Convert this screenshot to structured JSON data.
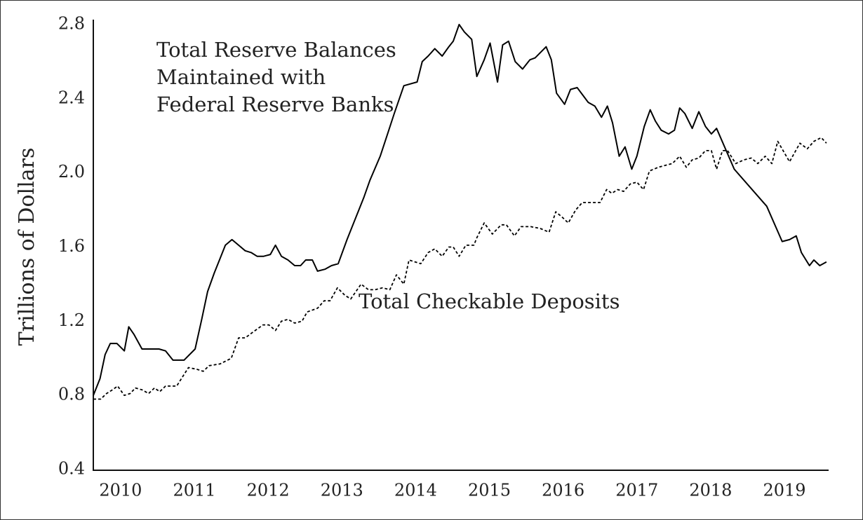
{
  "chart_data": {
    "type": "line",
    "ylabel": "Trillions of Dollars",
    "annotations": [
      {
        "lines": [
          "Total Reserve Balances",
          "Maintained with",
          "Federal Reserve Banks"
        ]
      },
      {
        "lines": [
          "Total Checkable Deposits"
        ]
      }
    ],
    "xlim": [
      2009.63,
      2019.59
    ],
    "xticks": [
      2010,
      2011,
      2012,
      2013,
      2014,
      2015,
      2016,
      2017,
      2018,
      2019
    ],
    "ylim": [
      0.4,
      2.8
    ],
    "yticks": [
      0.4,
      0.8,
      1.2,
      1.6,
      {
        "value": 2,
        "label": "2.0"
      },
      2.4,
      2.8
    ],
    "series": [
      {
        "color": "#000000",
        "dash": "solid",
        "x": [
          2009.63,
          2009.72,
          2009.79,
          2009.86,
          2009.95,
          2010.05,
          2010.11,
          2010.18,
          2010.29,
          2010.38,
          2010.52,
          2010.61,
          2010.71,
          2010.86,
          2011.01,
          2011.1,
          2011.18,
          2011.27,
          2011.34,
          2011.42,
          2011.51,
          2011.6,
          2011.69,
          2011.77,
          2011.85,
          2011.94,
          2012.03,
          2012.1,
          2012.18,
          2012.27,
          2012.36,
          2012.44,
          2012.51,
          2012.6,
          2012.67,
          2012.77,
          2012.86,
          2012.95,
          2013.07,
          2013.22,
          2013.3,
          2013.38,
          2013.52,
          2013.62,
          2013.71,
          2013.84,
          2014.02,
          2014.09,
          2014.17,
          2014.26,
          2014.36,
          2014.45,
          2014.51,
          2014.59,
          2014.66,
          2014.76,
          2014.83,
          2014.93,
          2015.01,
          2015.11,
          2015.18,
          2015.26,
          2015.35,
          2015.45,
          2015.55,
          2015.62,
          2015.77,
          2015.84,
          2015.91,
          2016.02,
          2016.1,
          2016.19,
          2016.34,
          2016.43,
          2016.52,
          2016.6,
          2016.67,
          2016.76,
          2016.84,
          2016.93,
          2017.0,
          2017.1,
          2017.18,
          2017.25,
          2017.33,
          2017.43,
          2017.51,
          2017.58,
          2017.65,
          2017.75,
          2017.84,
          2017.93,
          2018.01,
          2018.08,
          2018.32,
          2018.76,
          2018.97,
          2019.07,
          2019.16,
          2019.23,
          2019.34,
          2019.4,
          2019.48,
          2019.57
        ],
        "values": [
          0.8,
          0.89,
          1.02,
          1.08,
          1.08,
          1.04,
          1.17,
          1.13,
          1.05,
          1.05,
          1.05,
          1.04,
          0.99,
          0.99,
          1.05,
          1.21,
          1.36,
          1.46,
          1.53,
          1.61,
          1.64,
          1.61,
          1.58,
          1.57,
          1.55,
          1.55,
          1.56,
          1.61,
          1.55,
          1.53,
          1.5,
          1.5,
          1.53,
          1.53,
          1.47,
          1.48,
          1.5,
          1.51,
          1.64,
          1.79,
          1.87,
          1.96,
          2.09,
          2.21,
          2.32,
          2.47,
          2.49,
          2.6,
          2.63,
          2.67,
          2.63,
          2.68,
          2.71,
          2.8,
          2.76,
          2.72,
          2.52,
          2.61,
          2.7,
          2.49,
          2.69,
          2.71,
          2.6,
          2.56,
          2.61,
          2.62,
          2.68,
          2.61,
          2.43,
          2.37,
          2.45,
          2.46,
          2.38,
          2.36,
          2.3,
          2.36,
          2.27,
          2.09,
          2.14,
          2.02,
          2.09,
          2.25,
          2.34,
          2.28,
          2.23,
          2.21,
          2.23,
          2.35,
          2.32,
          2.24,
          2.33,
          2.25,
          2.21,
          2.24,
          2.02,
          1.82,
          1.63,
          1.64,
          1.66,
          1.57,
          1.5,
          1.53,
          1.5,
          1.52
        ]
      },
      {
        "color": "#000000",
        "dash": "dotted",
        "x": [
          2009.63,
          2009.73,
          2009.81,
          2009.89,
          2009.96,
          2010.05,
          2010.13,
          2010.2,
          2010.29,
          2010.38,
          2010.46,
          2010.53,
          2010.61,
          2010.76,
          2010.92,
          2011.04,
          2011.12,
          2011.2,
          2011.35,
          2011.5,
          2011.6,
          2011.69,
          2011.79,
          2011.93,
          2012.01,
          2012.1,
          2012.18,
          2012.27,
          2012.36,
          2012.46,
          2012.53,
          2012.67,
          2012.76,
          2012.84,
          2012.94,
          2013.04,
          2013.12,
          2013.26,
          2013.36,
          2013.45,
          2013.55,
          2013.65,
          2013.74,
          2013.84,
          2013.91,
          2014.07,
          2014.17,
          2014.26,
          2014.36,
          2014.45,
          2014.51,
          2014.59,
          2014.68,
          2014.79,
          2014.83,
          2014.93,
          2015.04,
          2015.16,
          2015.23,
          2015.34,
          2015.43,
          2015.56,
          2015.69,
          2015.81,
          2015.9,
          2015.99,
          2016.07,
          2016.17,
          2016.26,
          2016.36,
          2016.5,
          2016.59,
          2016.66,
          2016.74,
          2016.82,
          2016.91,
          2017.0,
          2017.09,
          2017.17,
          2017.29,
          2017.38,
          2017.48,
          2017.58,
          2017.67,
          2017.75,
          2017.84,
          2017.93,
          2018.01,
          2018.08,
          2018.16,
          2018.23,
          2018.34,
          2018.45,
          2018.55,
          2018.64,
          2018.74,
          2018.83,
          2018.91,
          2019.07,
          2019.21,
          2019.31,
          2019.4,
          2019.5,
          2019.57
        ],
        "values": [
          0.78,
          0.78,
          0.81,
          0.83,
          0.85,
          0.8,
          0.81,
          0.84,
          0.83,
          0.81,
          0.84,
          0.82,
          0.85,
          0.85,
          0.95,
          0.94,
          0.93,
          0.96,
          0.97,
          1.0,
          1.11,
          1.11,
          1.14,
          1.18,
          1.18,
          1.15,
          1.2,
          1.21,
          1.19,
          1.2,
          1.25,
          1.27,
          1.31,
          1.31,
          1.38,
          1.34,
          1.32,
          1.4,
          1.37,
          1.37,
          1.38,
          1.37,
          1.45,
          1.4,
          1.53,
          1.51,
          1.57,
          1.59,
          1.55,
          1.6,
          1.6,
          1.55,
          1.61,
          1.61,
          1.65,
          1.73,
          1.67,
          1.72,
          1.72,
          1.66,
          1.71,
          1.71,
          1.7,
          1.68,
          1.79,
          1.76,
          1.73,
          1.8,
          1.84,
          1.84,
          1.84,
          1.91,
          1.89,
          1.91,
          1.9,
          1.94,
          1.95,
          1.91,
          2.01,
          2.03,
          2.04,
          2.05,
          2.09,
          2.03,
          2.07,
          2.08,
          2.12,
          2.12,
          2.02,
          2.12,
          2.12,
          2.05,
          2.07,
          2.08,
          2.05,
          2.09,
          2.05,
          2.17,
          2.06,
          2.16,
          2.13,
          2.17,
          2.19,
          2.16
        ]
      }
    ]
  }
}
